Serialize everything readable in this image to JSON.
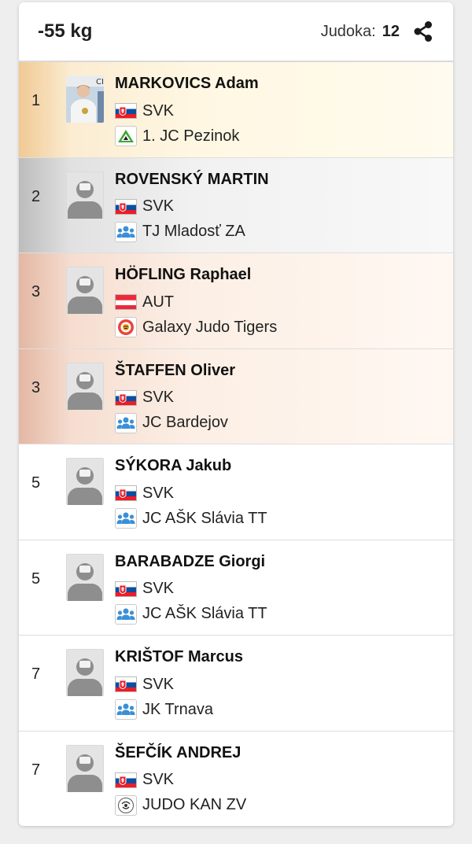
{
  "header": {
    "weight": "-55 kg",
    "count_label": "Judoka:",
    "count_value": "12"
  },
  "results": [
    {
      "rank": "1",
      "name": "MARKOVICS Adam",
      "country": "SVK",
      "club": "1. JC Pezinok",
      "medal": "gold",
      "photo": "athlete-photo",
      "club_icon": "pezinok-club-icon"
    },
    {
      "rank": "2",
      "name": "ROVENSKÝ MARTIN",
      "country": "SVK",
      "club": "TJ Mladosť ZA",
      "medal": "silver",
      "photo": "placeholder",
      "club_icon": "group-club-icon"
    },
    {
      "rank": "3",
      "name": "HÖFLING Raphael",
      "country": "AUT",
      "club": "Galaxy Judo Tigers",
      "medal": "bronze",
      "photo": "placeholder",
      "club_icon": "tiger-club-icon"
    },
    {
      "rank": "3",
      "name": "ŠTAFFEN Oliver",
      "country": "SVK",
      "club": "JC Bardejov",
      "medal": "bronze",
      "photo": "placeholder",
      "club_icon": "group-club-icon"
    },
    {
      "rank": "5",
      "name": "SÝKORA Jakub",
      "country": "SVK",
      "club": "JC AŠK Slávia TT",
      "medal": "none",
      "photo": "placeholder",
      "club_icon": "group-club-icon"
    },
    {
      "rank": "5",
      "name": "BARABADZE Giorgi",
      "country": "SVK",
      "club": "JC AŠK Slávia TT",
      "medal": "none",
      "photo": "placeholder",
      "club_icon": "group-club-icon"
    },
    {
      "rank": "7",
      "name": "KRIŠTOF Marcus",
      "country": "SVK",
      "club": "JK Trnava",
      "medal": "none",
      "photo": "placeholder",
      "club_icon": "group-club-icon"
    },
    {
      "rank": "7",
      "name": "ŠEFČÍK ANDREJ",
      "country": "SVK",
      "club": "JUDO KAN ZV",
      "medal": "none",
      "photo": "placeholder",
      "club_icon": "judokan-club-icon"
    }
  ],
  "colors": {
    "gold_edge": "#f1c994",
    "silver_edge": "#bcbcbc",
    "bronze_edge": "#e3b7a3",
    "group_icon_blue": "#3b8fd6",
    "avatar_gray": "#8e8e8e"
  }
}
